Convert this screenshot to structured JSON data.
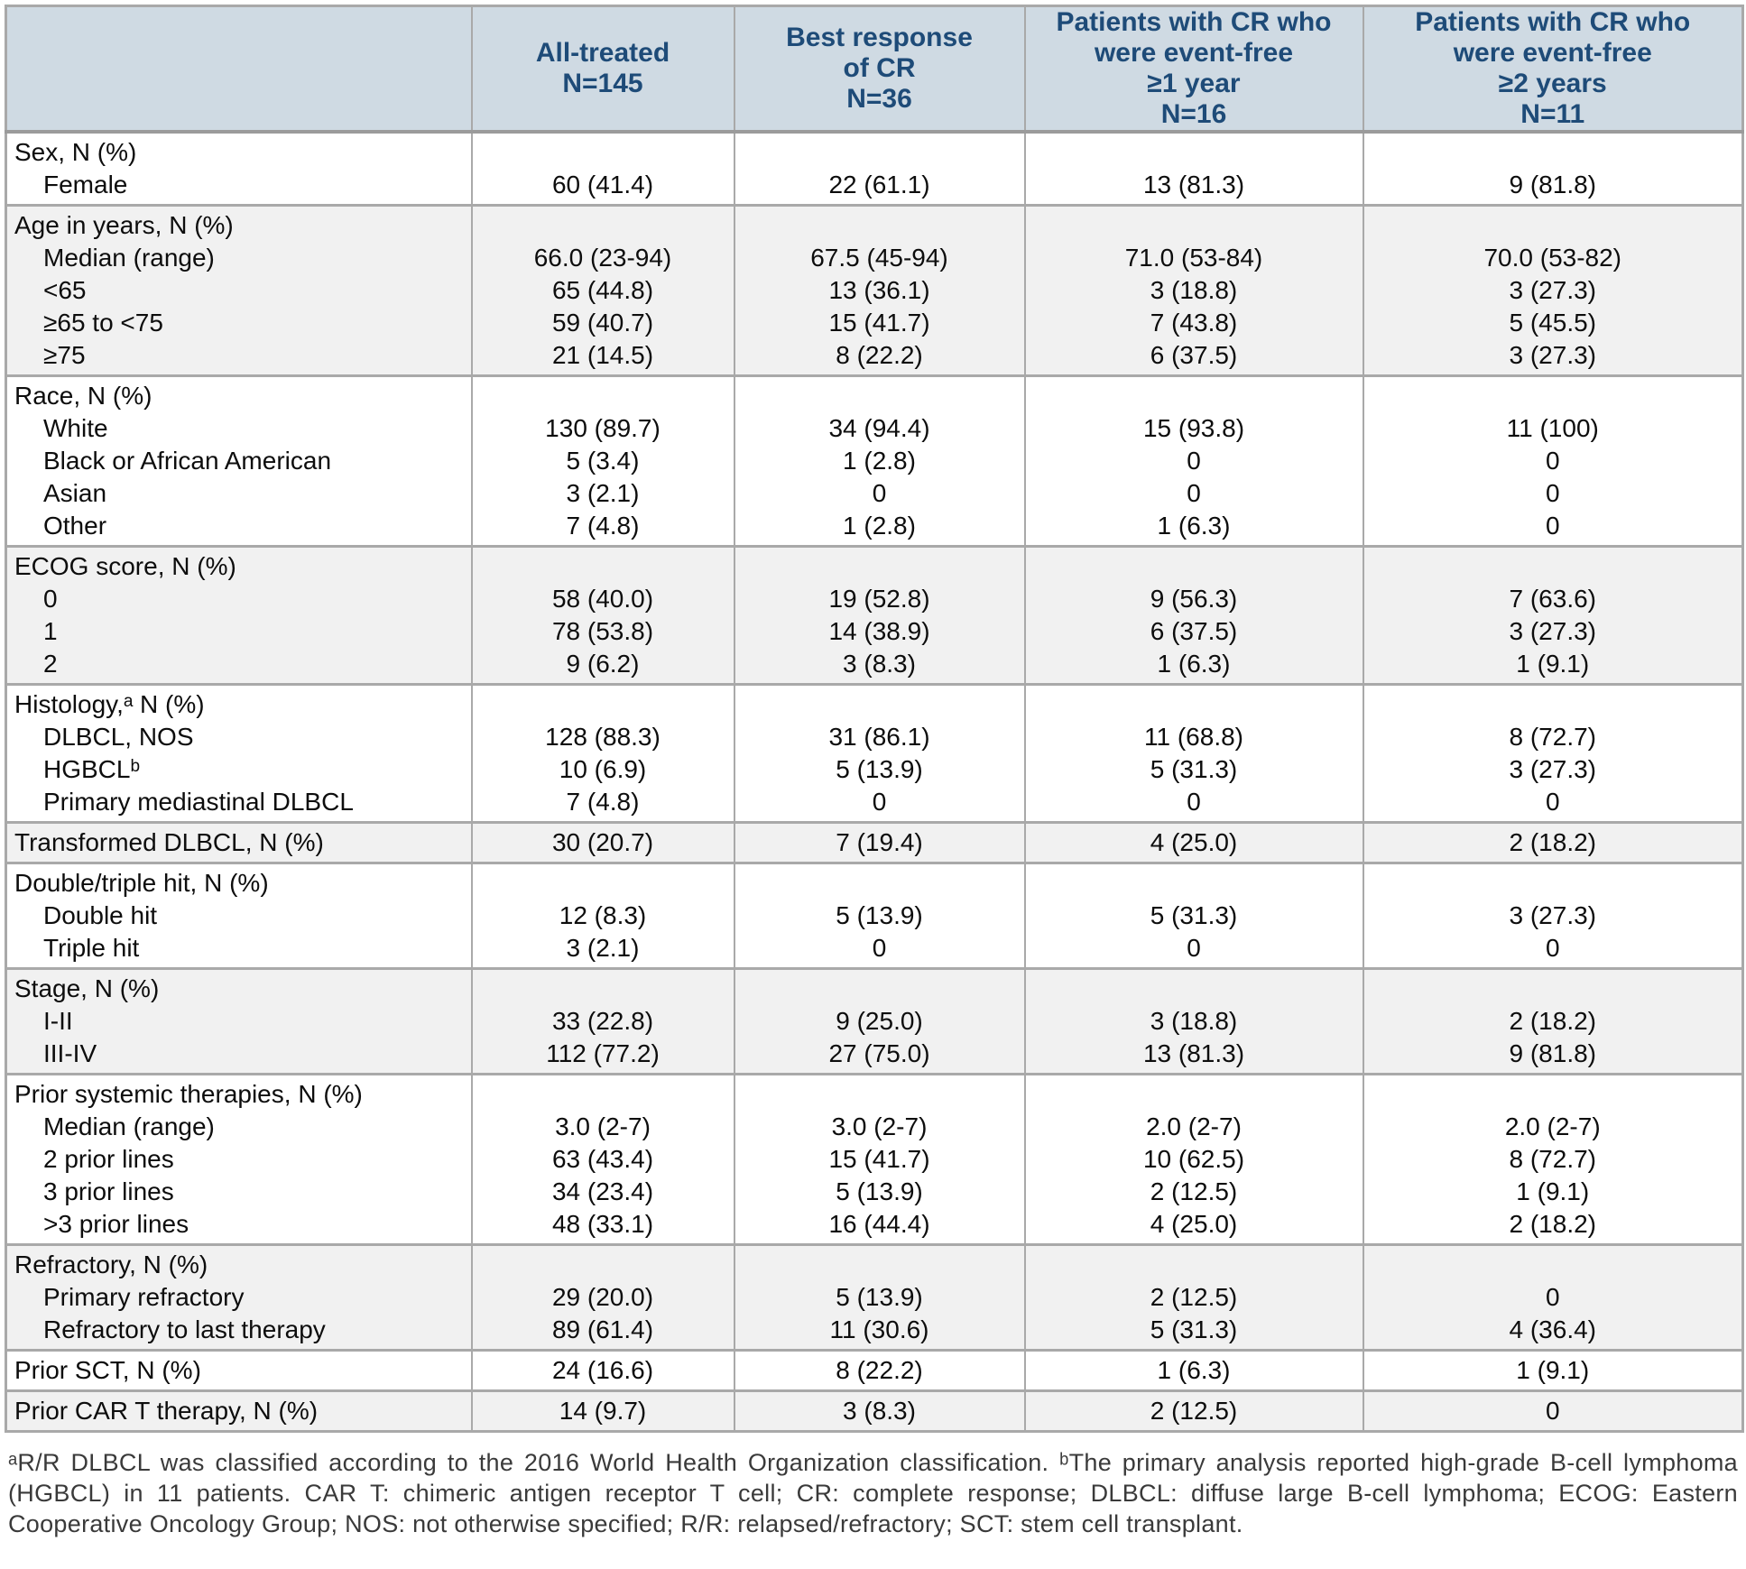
{
  "colors": {
    "header_bg": "#cfdae3",
    "header_text": "#1e4b78",
    "row_alt_bg": "#f1f1f1",
    "border": "#a9a9a9",
    "body_text": "#0d0d0d",
    "footnote_text": "#3a3a3a"
  },
  "table": {
    "columns": [
      {
        "lines": [
          "All-treated",
          "N=145"
        ]
      },
      {
        "lines": [
          "Best response",
          "of CR",
          "N=36"
        ]
      },
      {
        "lines": [
          "Patients with CR who",
          "were event-free",
          "≥1 year",
          "N=16"
        ]
      },
      {
        "lines": [
          "Patients with CR who",
          "were event-free",
          "≥2 years",
          "N=11"
        ]
      }
    ],
    "sections": [
      {
        "shade": "white",
        "rows": [
          {
            "label": "Sex, N (%)",
            "indent": false,
            "values": [
              "",
              "",
              "",
              ""
            ]
          },
          {
            "label": "Female",
            "indent": true,
            "values": [
              "60 (41.4)",
              "22 (61.1)",
              "13 (81.3)",
              "9 (81.8)"
            ]
          }
        ]
      },
      {
        "shade": "gray",
        "rows": [
          {
            "label": "Age in years, N (%)",
            "indent": false,
            "values": [
              "",
              "",
              "",
              ""
            ]
          },
          {
            "label": "Median (range)",
            "indent": true,
            "values": [
              "66.0 (23-94)",
              "67.5 (45-94)",
              "71.0 (53-84)",
              "70.0 (53-82)"
            ]
          },
          {
            "label": "<65",
            "indent": true,
            "values": [
              "65 (44.8)",
              "13 (36.1)",
              "3 (18.8)",
              "3 (27.3)"
            ]
          },
          {
            "label": "≥65 to <75",
            "indent": true,
            "values": [
              "59 (40.7)",
              "15 (41.7)",
              "7 (43.8)",
              "5 (45.5)"
            ]
          },
          {
            "label": "≥75",
            "indent": true,
            "values": [
              "21 (14.5)",
              "8 (22.2)",
              "6 (37.5)",
              "3 (27.3)"
            ]
          }
        ]
      },
      {
        "shade": "white",
        "rows": [
          {
            "label": "Race, N (%)",
            "indent": false,
            "values": [
              "",
              "",
              "",
              ""
            ]
          },
          {
            "label": "White",
            "indent": true,
            "values": [
              "130 (89.7)",
              "34 (94.4)",
              "15 (93.8)",
              "11 (100)"
            ]
          },
          {
            "label": "Black or African American",
            "indent": true,
            "values": [
              "5 (3.4)",
              "1 (2.8)",
              "0",
              "0"
            ]
          },
          {
            "label": "Asian",
            "indent": true,
            "values": [
              "3 (2.1)",
              "0",
              "0",
              "0"
            ]
          },
          {
            "label": "Other",
            "indent": true,
            "values": [
              "7 (4.8)",
              "1 (2.8)",
              "1 (6.3)",
              "0"
            ]
          }
        ]
      },
      {
        "shade": "gray",
        "rows": [
          {
            "label": "ECOG score, N (%)",
            "indent": false,
            "values": [
              "",
              "",
              "",
              ""
            ]
          },
          {
            "label": "0",
            "indent": true,
            "values": [
              "58 (40.0)",
              "19 (52.8)",
              "9 (56.3)",
              "7 (63.6)"
            ]
          },
          {
            "label": "1",
            "indent": true,
            "values": [
              "78 (53.8)",
              "14 (38.9)",
              "6 (37.5)",
              "3 (27.3)"
            ]
          },
          {
            "label": "2",
            "indent": true,
            "values": [
              "9 (6.2)",
              "3 (8.3)",
              "1 (6.3)",
              "1 (9.1)"
            ]
          }
        ]
      },
      {
        "shade": "white",
        "rows": [
          {
            "label": "Histology,ᵃ N (%)",
            "indent": false,
            "values": [
              "",
              "",
              "",
              ""
            ]
          },
          {
            "label": "DLBCL, NOS",
            "indent": true,
            "values": [
              "128 (88.3)",
              "31 (86.1)",
              "11 (68.8)",
              "8 (72.7)"
            ]
          },
          {
            "label": "HGBCLᵇ",
            "indent": true,
            "values": [
              "10 (6.9)",
              "5 (13.9)",
              "5 (31.3)",
              "3 (27.3)"
            ]
          },
          {
            "label": "Primary mediastinal DLBCL",
            "indent": true,
            "values": [
              "7 (4.8)",
              "0",
              "0",
              "0"
            ]
          }
        ]
      },
      {
        "shade": "gray",
        "rows": [
          {
            "label": "Transformed DLBCL, N (%)",
            "indent": false,
            "values": [
              "30 (20.7)",
              "7 (19.4)",
              "4 (25.0)",
              "2 (18.2)"
            ]
          }
        ]
      },
      {
        "shade": "white",
        "rows": [
          {
            "label": "Double/triple hit, N (%)",
            "indent": false,
            "values": [
              "",
              "",
              "",
              ""
            ]
          },
          {
            "label": "Double hit",
            "indent": true,
            "values": [
              "12 (8.3)",
              "5 (13.9)",
              "5 (31.3)",
              "3 (27.3)"
            ]
          },
          {
            "label": "Triple hit",
            "indent": true,
            "values": [
              "3 (2.1)",
              "0",
              "0",
              "0"
            ]
          }
        ]
      },
      {
        "shade": "gray",
        "rows": [
          {
            "label": "Stage, N (%)",
            "indent": false,
            "values": [
              "",
              "",
              "",
              ""
            ]
          },
          {
            "label": "I-II",
            "indent": true,
            "values": [
              "33 (22.8)",
              "9 (25.0)",
              "3 (18.8)",
              "2 (18.2)"
            ]
          },
          {
            "label": "III-IV",
            "indent": true,
            "values": [
              "112 (77.2)",
              "27 (75.0)",
              "13 (81.3)",
              "9 (81.8)"
            ]
          }
        ]
      },
      {
        "shade": "white",
        "rows": [
          {
            "label": "Prior systemic therapies, N (%)",
            "indent": false,
            "values": [
              "",
              "",
              "",
              ""
            ]
          },
          {
            "label": "Median (range)",
            "indent": true,
            "values": [
              "3.0 (2-7)",
              "3.0 (2-7)",
              "2.0 (2-7)",
              "2.0 (2-7)"
            ]
          },
          {
            "label": "2 prior lines",
            "indent": true,
            "values": [
              "63 (43.4)",
              "15 (41.7)",
              "10 (62.5)",
              "8 (72.7)"
            ]
          },
          {
            "label": "3 prior lines",
            "indent": true,
            "values": [
              "34 (23.4)",
              "5 (13.9)",
              "2 (12.5)",
              "1 (9.1)"
            ]
          },
          {
            "label": ">3 prior lines",
            "indent": true,
            "values": [
              "48 (33.1)",
              "16 (44.4)",
              "4 (25.0)",
              "2 (18.2)"
            ]
          }
        ]
      },
      {
        "shade": "gray",
        "rows": [
          {
            "label": "Refractory, N (%)",
            "indent": false,
            "values": [
              "",
              "",
              "",
              ""
            ]
          },
          {
            "label": "Primary refractory",
            "indent": true,
            "values": [
              "29 (20.0)",
              "5 (13.9)",
              "2 (12.5)",
              "0"
            ]
          },
          {
            "label": "Refractory to last therapy",
            "indent": true,
            "values": [
              "89 (61.4)",
              "11 (30.6)",
              "5 (31.3)",
              "4 (36.4)"
            ]
          }
        ]
      },
      {
        "shade": "white",
        "rows": [
          {
            "label": "Prior SCT, N (%)",
            "indent": false,
            "values": [
              "24 (16.6)",
              "8 (22.2)",
              "1 (6.3)",
              "1 (9.1)"
            ]
          }
        ]
      },
      {
        "shade": "gray",
        "rows": [
          {
            "label": "Prior CAR T therapy, N (%)",
            "indent": false,
            "values": [
              "14 (9.7)",
              "3 (8.3)",
              "2 (12.5)",
              "0"
            ]
          }
        ]
      }
    ]
  },
  "footnote": "ᵃR/R DLBCL was classified according to the 2016 World Health Organization classification. ᵇThe primary analysis reported high-grade B-cell lymphoma (HGBCL) in 11 patients. CAR T: chimeric antigen receptor T cell; CR: complete response; DLBCL: diffuse large B-cell lymphoma; ECOG: Eastern Cooperative Oncology Group; NOS: not otherwise specified; R/R: relapsed/refractory; SCT: stem cell transplant."
}
